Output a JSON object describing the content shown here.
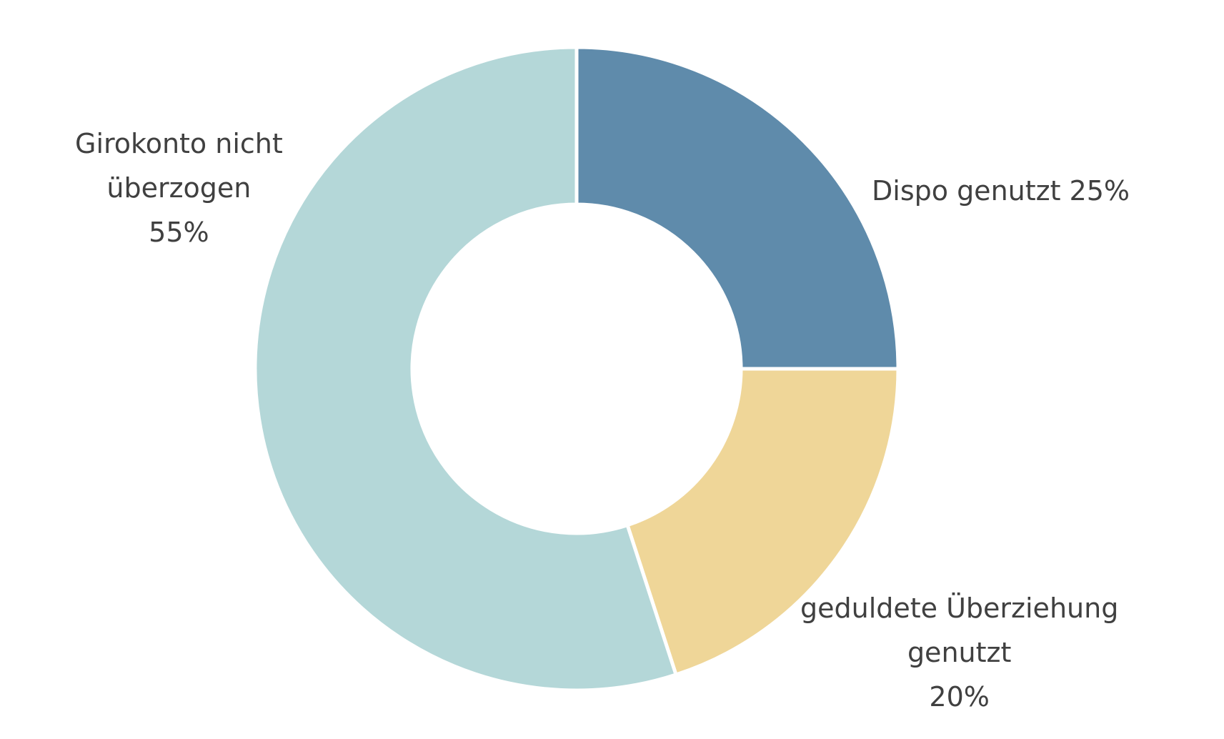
{
  "chart_data": {
    "type": "pie",
    "donut": true,
    "title": "",
    "slices": [
      {
        "label_lines": [
          "Dispo genutzt 25%"
        ],
        "value": 25,
        "color": "#5f8bab"
      },
      {
        "label_lines": [
          "geduldete Überziehung",
          "genutzt",
          "20%"
        ],
        "value": 20,
        "color": "#efd698"
      },
      {
        "label_lines": [
          "Girokonto nicht",
          "überzogen",
          "55%"
        ],
        "value": 55,
        "color": "#b4d7d8"
      }
    ],
    "start": "12 o'clock",
    "direction": "clockwise",
    "legend": "none",
    "slice_separator_color": "#ffffff"
  }
}
